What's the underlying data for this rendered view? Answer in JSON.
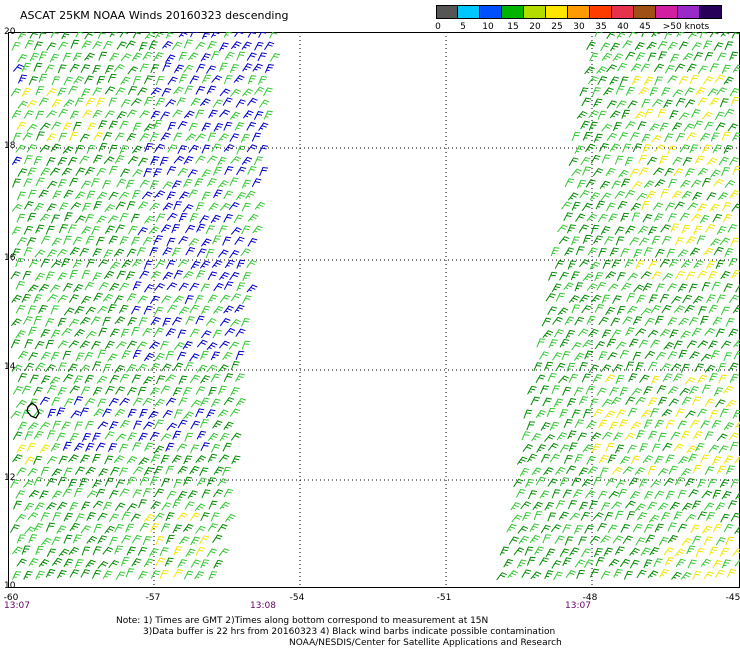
{
  "title": "ASCAT 25KM NOAA Winds 20160323 descending",
  "colorbar": {
    "colors": [
      "#555555",
      "#00c8ff",
      "#0050ff",
      "#00b400",
      "#b4dc00",
      "#ffe600",
      "#ff9b00",
      "#ff3c00",
      "#e6324b",
      "#a05014",
      "#d21ea0",
      "#9b28c8",
      "#28005a"
    ],
    "labels": [
      "0",
      "5",
      "10",
      "15",
      "20",
      "25",
      "30",
      "35",
      "40",
      "45",
      ">50 knots"
    ]
  },
  "lat_labels": [
    "20",
    "18",
    "16",
    "14",
    "12",
    "10"
  ],
  "lon_labels": [
    "-60",
    "-57",
    "-54",
    "-51",
    "-48",
    "-45"
  ],
  "time_labels": [
    "13:07",
    "13:08",
    "13:07"
  ],
  "barb_colors": {
    "dark_green": "#008c00",
    "light_green": "#34c834",
    "blue": "#0000c8",
    "yellow": "#f0e600",
    "contamination": "#000000"
  },
  "notes": {
    "line1": "Note: 1) Times are GMT 2)Times along bottom correspond to measurement at 15N",
    "line2": "3)Data buffer is 22 hrs from 20160323 4) Black wind barbs indicate possible contamination",
    "line3": "NOAA/NESDIS/Center for Satellite Applications and Research"
  }
}
